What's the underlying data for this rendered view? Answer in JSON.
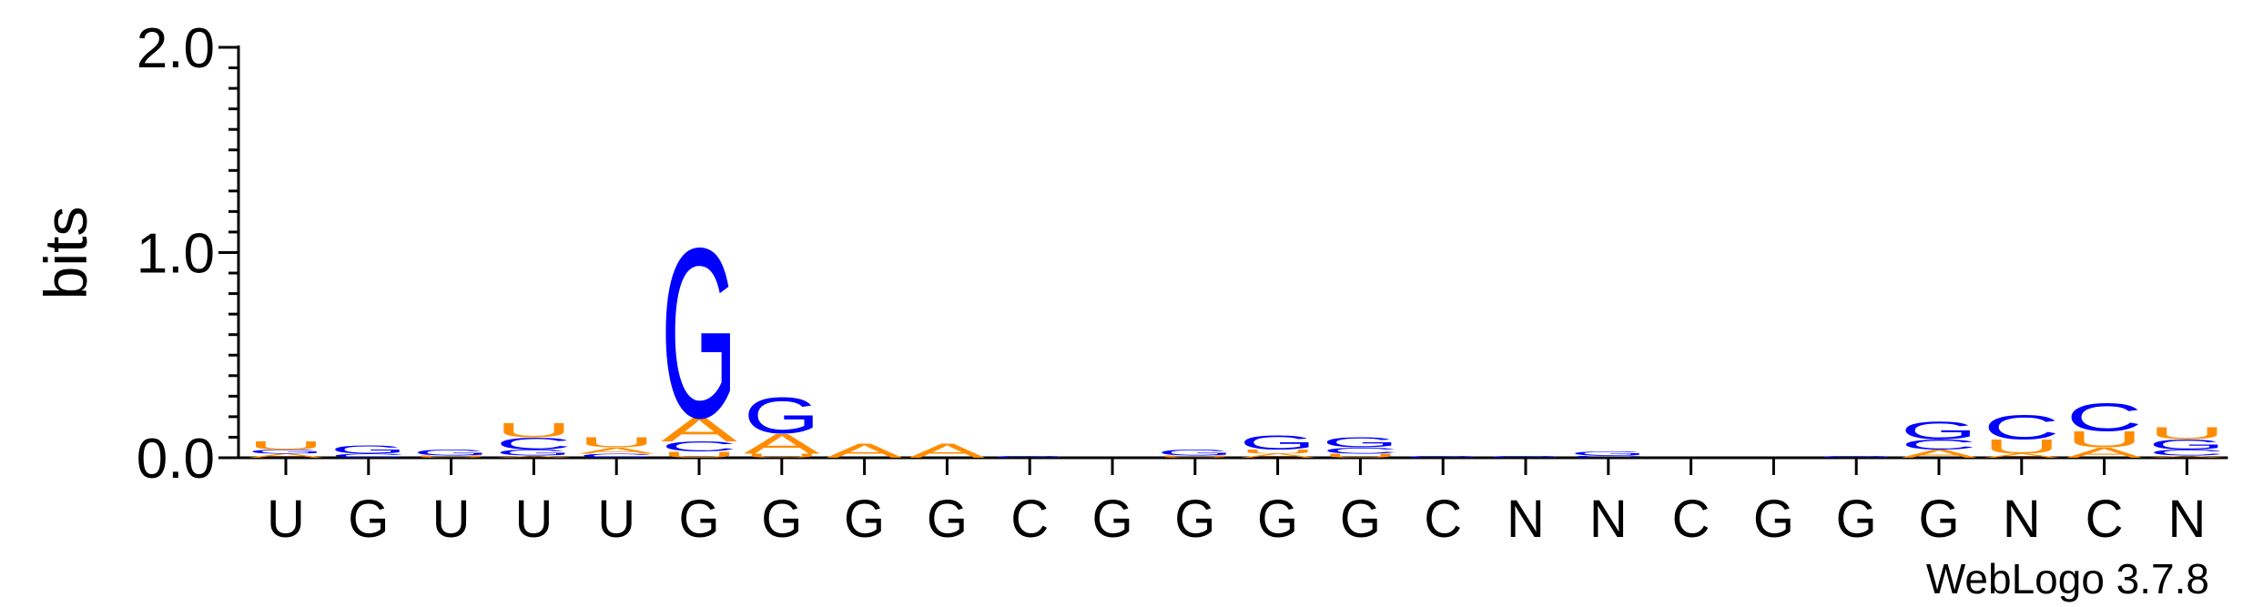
{
  "chart_data": {
    "type": "logo",
    "ylabel": "bits",
    "footer": "WebLogo 3.7.8",
    "categories": [
      "U",
      "G",
      "U",
      "U",
      "U",
      "G",
      "G",
      "G",
      "G",
      "C",
      "G",
      "G",
      "G",
      "G",
      "C",
      "N",
      "N",
      "C",
      "G",
      "G",
      "G",
      "N",
      "C",
      "N"
    ],
    "ylim": [
      0,
      2
    ],
    "yticks": [
      {
        "value": 0,
        "label": "0.0"
      },
      {
        "value": 1,
        "label": "1.0"
      },
      {
        "value": 2,
        "label": "2.0"
      }
    ],
    "yminorticks": [
      0.1,
      0.2,
      0.3,
      0.4,
      0.5,
      0.6,
      0.7,
      0.8,
      0.9,
      1.1,
      1.2,
      1.3,
      1.4,
      1.5,
      1.6,
      1.7,
      1.8,
      1.9
    ],
    "series": [
      {
        "name": "A",
        "color": "#ff8c00",
        "values": [
          0.02,
          0,
          0,
          0.01,
          0.03,
          0.12,
          0.1,
          0.07,
          0.07,
          0,
          0,
          0,
          0.02,
          0,
          0,
          0,
          0,
          0,
          0,
          0,
          0.04,
          0.02,
          0.05,
          0.01
        ]
      },
      {
        "name": "C",
        "color": "#0000ff",
        "values": [
          0,
          0.02,
          0,
          0.06,
          0.02,
          0.05,
          0,
          0,
          0,
          0,
          0,
          0,
          0,
          0.03,
          0,
          0,
          0.01,
          0,
          0,
          0,
          0.05,
          0.12,
          0.14,
          0.03
        ]
      },
      {
        "name": "G",
        "color": "#0000ff",
        "values": [
          0.02,
          0.04,
          0.03,
          0.03,
          0,
          0.85,
          0.18,
          0,
          0,
          0.01,
          0,
          0.03,
          0.07,
          0.05,
          0.01,
          0.01,
          0.02,
          0,
          0,
          0.01,
          0.09,
          0,
          0,
          0.05
        ]
      },
      {
        "name": "U",
        "color": "#ff8c00",
        "values": [
          0.04,
          0,
          0.01,
          0.07,
          0.05,
          0.03,
          0.02,
          0,
          0,
          0,
          0,
          0.01,
          0.02,
          0.02,
          0,
          0,
          0,
          0,
          0,
          0,
          0,
          0.07,
          0.08,
          0.06
        ]
      }
    ]
  }
}
